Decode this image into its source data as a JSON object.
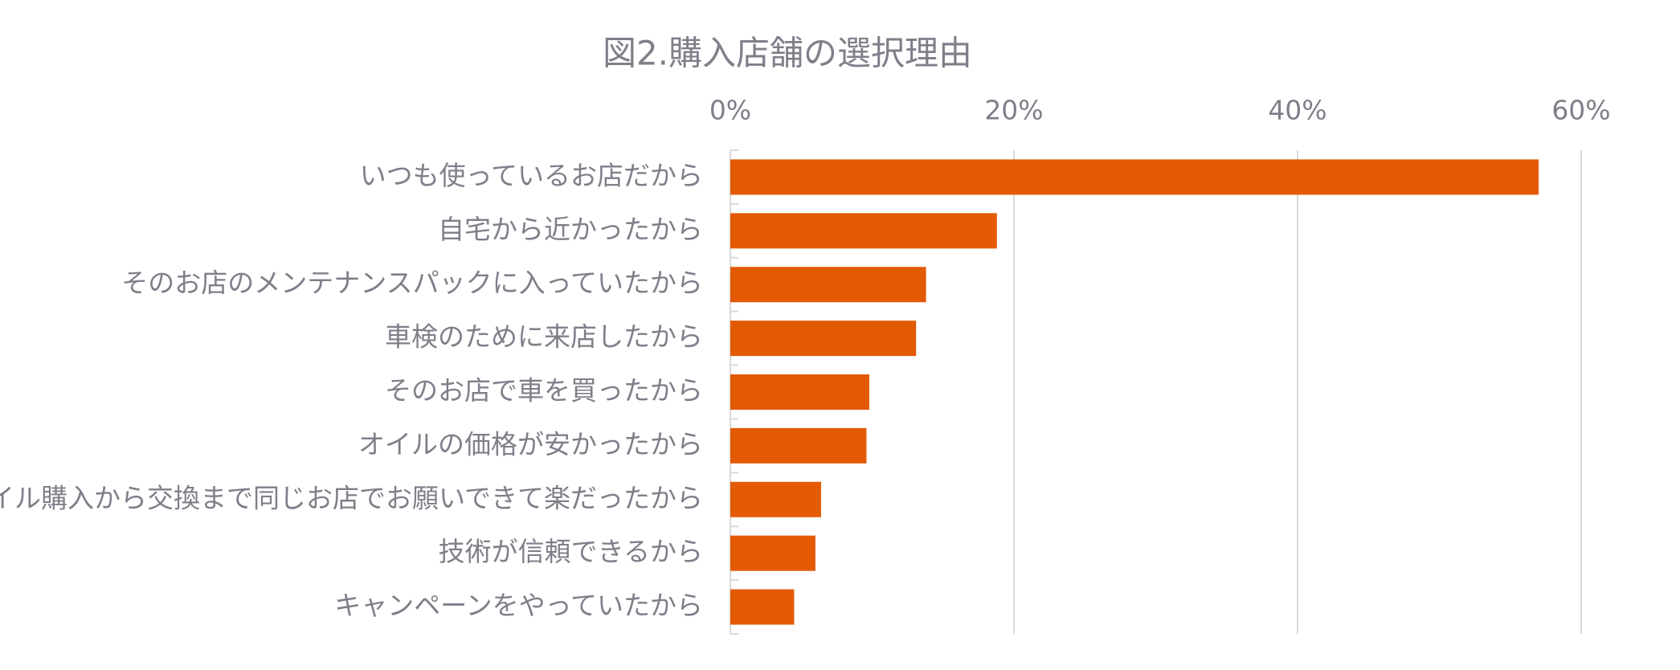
{
  "chart_data": {
    "type": "barh",
    "title": "図2.購入店舗の選択理由",
    "categories": [
      "いつも使っているお店だから",
      "自宅から近かったから",
      "そのお店のメンテナンスパックに入っていたから",
      "車検のために来店したから",
      "そのお店で車を買ったから",
      "オイルの価格が安かったから",
      "オイル購入から交換まで同じお店でお願いできて楽だったから",
      "技術が信頼できるから",
      "キャンペーンをやっていたから"
    ],
    "values": [
      57,
      18.8,
      13.8,
      13.1,
      9.8,
      9.6,
      6.4,
      6.0,
      4.5
    ],
    "color": "#e35a05",
    "xlim": [
      0,
      60
    ],
    "xticks": [
      {
        "value": 0,
        "label": "0%"
      },
      {
        "value": 20,
        "label": "20%"
      },
      {
        "value": 40,
        "label": "40%"
      },
      {
        "value": 60,
        "label": "60%"
      }
    ],
    "grid": true
  }
}
